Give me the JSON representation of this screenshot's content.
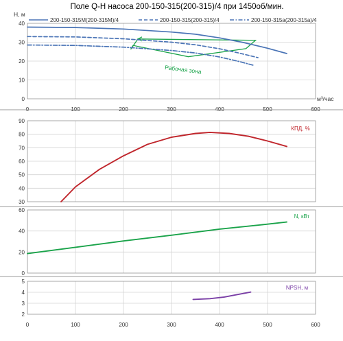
{
  "title": "Поле Q-H насоса 200-150-315(200-315)/4 при 1450об/мин.",
  "legend": [
    {
      "label": "200-150-315М(200-315М)/4",
      "style": "solid",
      "color": "#4a74b6"
    },
    {
      "label": "200-150-315(200-315)/4",
      "style": "dash",
      "color": "#4a74b6"
    },
    {
      "label": "200-150-315а(200-315а)/4",
      "style": "dashdot",
      "color": "#4a74b6"
    }
  ],
  "colors": {
    "qh": "#4a74b6",
    "zone": "#1aa34a",
    "eff": "#c0262c",
    "power": "#1aa34a",
    "npsh": "#7a3fa6"
  },
  "chart_data": [
    {
      "type": "line",
      "id": "qh",
      "ylabel": "H, м",
      "xlabel": "м³/час",
      "xlim": [
        0,
        600
      ],
      "ylim": [
        0,
        40
      ],
      "xticks": [
        0,
        100,
        200,
        300,
        400,
        500,
        600
      ],
      "yticks": [
        0,
        10,
        20,
        30,
        40
      ],
      "x_label_ticks": [
        "0",
        "100",
        "200",
        "300",
        "400",
        "500",
        "600"
      ],
      "y_label_ticks": [
        "0",
        "10",
        "20",
        "30",
        "40"
      ],
      "series": [
        {
          "name": "200-150-315М(200-315М)/4",
          "style": "solid",
          "x": [
            0,
            100,
            200,
            300,
            350,
            400,
            450,
            500,
            540
          ],
          "y": [
            38,
            37.8,
            37,
            35.4,
            34.2,
            32.3,
            29.8,
            26.8,
            24
          ]
        },
        {
          "name": "200-150-315(200-315)/4",
          "style": "dash",
          "x": [
            0,
            100,
            200,
            300,
            350,
            400,
            440,
            480
          ],
          "y": [
            33,
            32.8,
            31.8,
            30,
            28.6,
            26.5,
            24.3,
            21.8
          ]
        },
        {
          "name": "200-150-315а(200-315а)/4",
          "style": "dashdot",
          "x": [
            0,
            100,
            200,
            300,
            350,
            400,
            440,
            470
          ],
          "y": [
            28.5,
            28.3,
            27.4,
            25.6,
            24.3,
            22.2,
            19.8,
            17.8
          ]
        }
      ],
      "annotation": {
        "label": "Рабочая зона",
        "polygon_x": [
          215,
          230,
          475,
          455,
          335,
          220,
          215
        ],
        "polygon_y": [
          26.2,
          31.7,
          31.0,
          26.6,
          22.3,
          28.3,
          26.2
        ]
      }
    },
    {
      "type": "line",
      "id": "eff",
      "label": "КПД, %",
      "xlim": [
        0,
        600
      ],
      "ylim": [
        30,
        90
      ],
      "xticks": [
        0,
        100,
        200,
        300,
        400,
        500,
        600
      ],
      "yticks": [
        30,
        40,
        50,
        60,
        70,
        80,
        90
      ],
      "y_label_ticks": [
        "30",
        "40",
        "50",
        "60",
        "70",
        "80",
        "90"
      ],
      "series": [
        {
          "x": [
            70,
            100,
            150,
            200,
            250,
            300,
            350,
            380,
            420,
            460,
            500,
            540
          ],
          "y": [
            30,
            41,
            54,
            64,
            72.5,
            77.8,
            80.6,
            81.4,
            80.6,
            78.5,
            75,
            71
          ]
        }
      ]
    },
    {
      "type": "line",
      "id": "power",
      "label": "N, кВт",
      "xlim": [
        0,
        600
      ],
      "ylim": [
        0,
        60
      ],
      "xticks": [
        0,
        100,
        200,
        300,
        400,
        500,
        600
      ],
      "yticks": [
        0,
        20,
        40,
        60
      ],
      "y_label_ticks": [
        "0",
        "20",
        "40",
        "60"
      ],
      "series": [
        {
          "x": [
            0,
            100,
            200,
            300,
            400,
            500,
            540
          ],
          "y": [
            18.5,
            24.5,
            30.5,
            36,
            41.8,
            46.5,
            48.5
          ]
        }
      ]
    },
    {
      "type": "line",
      "id": "npsh",
      "label": "NPSH, м",
      "xlim": [
        0,
        600
      ],
      "ylim": [
        2,
        5
      ],
      "xticks": [
        0,
        100,
        200,
        300,
        400,
        500,
        600
      ],
      "yticks": [
        2,
        3,
        4,
        5
      ],
      "x_label_ticks": [
        "0",
        "100",
        "200",
        "300",
        "400",
        "500",
        "600"
      ],
      "y_label_ticks": [
        "2",
        "3",
        "4",
        "5"
      ],
      "series": [
        {
          "x": [
            345,
            380,
            410,
            440,
            465
          ],
          "y": [
            3.35,
            3.42,
            3.57,
            3.82,
            4.02
          ]
        }
      ]
    }
  ]
}
